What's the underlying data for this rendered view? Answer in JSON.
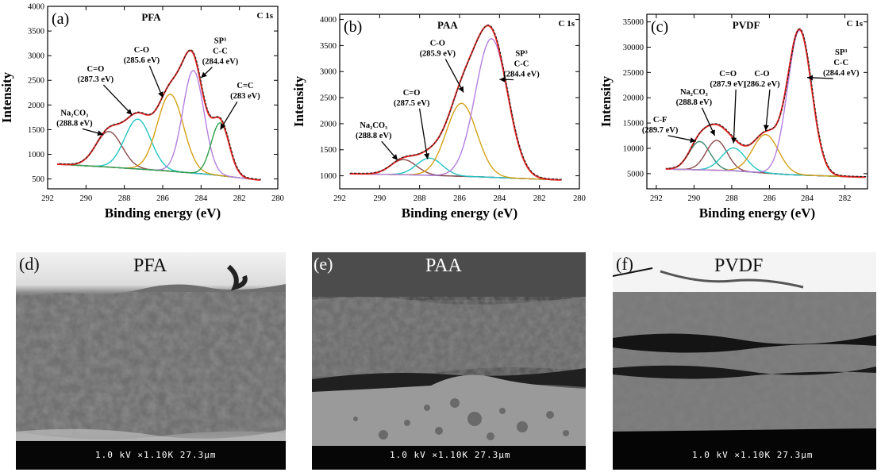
{
  "colors": {
    "envelope": "#e8231f",
    "raw": "#222222",
    "baseline": "#666677",
    "Na2CO3": "#8b4a4a",
    "C=O": "#22c4c4",
    "C-O": "#d4a017",
    "SP3": "#b57fe0",
    "C=C": "#2ea04a",
    "C-F": "#3a8a70"
  },
  "chart_data": [
    {
      "type": "line",
      "panel_label": "(a)",
      "title": "PFA",
      "corner_label": "C 1s",
      "xlabel": "Binding energy (eV)",
      "ylabel": "Intensity",
      "xlim": [
        292,
        280
      ],
      "ylim": [
        300,
        4000
      ],
      "xticks": [
        292,
        290,
        288,
        286,
        284,
        282,
        280
      ],
      "yticks": [
        500,
        1000,
        1500,
        2000,
        2500,
        3000,
        3500,
        4000
      ],
      "baseline": [
        [
          291.5,
          800
        ],
        [
          289,
          745
        ],
        [
          286,
          670
        ],
        [
          283.5,
          590
        ],
        [
          281,
          480
        ]
      ],
      "series": [
        {
          "name": "Na2CO3",
          "center": 288.8,
          "amplitude": 720,
          "fwhm": 1.6,
          "color_key": "Na2CO3"
        },
        {
          "name": "C=O",
          "center": 287.3,
          "amplitude": 1010,
          "fwhm": 1.6,
          "color_key": "C=O"
        },
        {
          "name": "C-O",
          "center": 285.6,
          "amplitude": 1560,
          "fwhm": 1.6,
          "color_key": "C-O"
        },
        {
          "name": "C-C",
          "center": 284.4,
          "amplitude": 2080,
          "fwhm": 1.3,
          "color_key": "SP3"
        },
        {
          "name": "C=C",
          "center": 283.0,
          "amplitude": 1070,
          "fwhm": 1.1,
          "color_key": "C=C"
        }
      ],
      "annotations": [
        {
          "lines": [
            "SP³",
            "C-C",
            "(284.4 eV)"
          ],
          "tx": 283.0,
          "ty": 3250,
          "ax": 284.0,
          "ay": 2550,
          "anchor": "middle"
        },
        {
          "lines": [
            "C-O",
            "(285.6 eV)"
          ],
          "tx": 287.1,
          "ty": 3070,
          "ax": 286.0,
          "ay": 2150,
          "anchor": "middle"
        },
        {
          "lines": [
            "C=O",
            "(287.3 eV)"
          ],
          "tx": 289.5,
          "ty": 2680,
          "ax": 287.6,
          "ay": 1800,
          "anchor": "middle"
        },
        {
          "lines": [
            "C=C",
            "(283 eV)"
          ],
          "tx": 281.7,
          "ty": 2340,
          "ax": 283.0,
          "ay": 1500,
          "anchor": "middle"
        },
        {
          "lines": [
            "Na₂CO₃",
            "(288.8 eV)"
          ],
          "tx": 290.6,
          "ty": 1790,
          "ax": 289.1,
          "ay": 1400,
          "anchor": "middle"
        }
      ]
    },
    {
      "type": "line",
      "panel_label": "(b)",
      "title": "PAA",
      "corner_label": "C 1s",
      "xlabel": "Binding energy (eV)",
      "ylabel": "Intensity",
      "xlim": [
        292,
        280
      ],
      "ylim": [
        750,
        4100
      ],
      "xticks": [
        292,
        290,
        288,
        286,
        284,
        282,
        280
      ],
      "yticks": [
        1000,
        1500,
        2000,
        2500,
        3000,
        3500,
        4000
      ],
      "baseline": [
        [
          291.5,
          1040
        ],
        [
          288,
          1015
        ],
        [
          285,
          980
        ],
        [
          281,
          920
        ]
      ],
      "series": [
        {
          "name": "Na2CO3",
          "center": 288.8,
          "amplitude": 290,
          "fwhm": 1.5,
          "color_key": "Na2CO3"
        },
        {
          "name": "C=O",
          "center": 287.5,
          "amplitude": 330,
          "fwhm": 1.5,
          "color_key": "C=O"
        },
        {
          "name": "C-O",
          "center": 285.9,
          "amplitude": 1400,
          "fwhm": 1.8,
          "color_key": "C-O"
        },
        {
          "name": "C-C",
          "center": 284.4,
          "amplitude": 2660,
          "fwhm": 1.9,
          "color_key": "SP3"
        }
      ],
      "annotations": [
        {
          "lines": [
            "SP³",
            "C-C",
            "(284.4 eV)"
          ],
          "tx": 282.9,
          "ty": 3300,
          "ax": 284.0,
          "ay": 2850,
          "anchor": "middle"
        },
        {
          "lines": [
            "C-O",
            "(285.9 eV)"
          ],
          "tx": 287.1,
          "ty": 3500,
          "ax": 285.8,
          "ay": 2600,
          "anchor": "middle"
        },
        {
          "lines": [
            "C=O",
            "(287.5 eV)"
          ],
          "tx": 288.4,
          "ty": 2550,
          "ax": 287.6,
          "ay": 1320,
          "anchor": "middle"
        },
        {
          "lines": [
            "Na₂CO₃",
            "(288.8 eV)"
          ],
          "tx": 290.3,
          "ty": 1920,
          "ax": 289.1,
          "ay": 1300,
          "anchor": "middle"
        }
      ]
    },
    {
      "type": "line",
      "panel_label": "(c)",
      "title": "PVDF",
      "corner_label": "C 1s",
      "xlabel": "Binding energy (eV)",
      "ylabel": "Intensity",
      "xlim": [
        292.5,
        280.8
      ],
      "ylim": [
        2000,
        36500
      ],
      "xticks": [
        292,
        290,
        288,
        286,
        284,
        282
      ],
      "yticks": [
        5000,
        10000,
        15000,
        20000,
        25000,
        30000,
        35000
      ],
      "baseline": [
        [
          291.5,
          5900
        ],
        [
          288,
          5600
        ],
        [
          285,
          4800
        ],
        [
          281,
          4300
        ]
      ],
      "series": [
        {
          "name": "C-F",
          "center": 289.7,
          "amplitude": 5600,
          "fwhm": 1.3,
          "color_key": "C-F"
        },
        {
          "name": "Na2CO3",
          "center": 288.8,
          "amplitude": 5900,
          "fwhm": 1.3,
          "color_key": "Na2CO3"
        },
        {
          "name": "C=O",
          "center": 287.9,
          "amplitude": 4500,
          "fwhm": 1.5,
          "color_key": "C=O"
        },
        {
          "name": "C-O",
          "center": 286.2,
          "amplitude": 7600,
          "fwhm": 1.6,
          "color_key": "C-O"
        },
        {
          "name": "C-C",
          "center": 284.4,
          "amplitude": 28600,
          "fwhm": 1.5,
          "color_key": "SP3"
        }
      ],
      "annotations": [
        {
          "lines": [
            "SP³",
            "C-C",
            "(284.4 eV)"
          ],
          "tx": 282.2,
          "ty": 28500,
          "ax": 284.0,
          "ay": 24000,
          "anchor": "middle"
        },
        {
          "lines": [
            "C-O",
            "(286.2 eV)"
          ],
          "tx": 286.4,
          "ty": 24300,
          "ax": 286.2,
          "ay": 13500,
          "anchor": "middle"
        },
        {
          "lines": [
            "C=O",
            "(287.9 eV)"
          ],
          "tx": 288.2,
          "ty": 24300,
          "ax": 287.9,
          "ay": 11000,
          "anchor": "middle"
        },
        {
          "lines": [
            "Na₂CO₃",
            "(288.8 eV)"
          ],
          "tx": 290.0,
          "ty": 20700,
          "ax": 288.9,
          "ay": 12500,
          "anchor": "middle"
        },
        {
          "lines": [
            "C-F",
            "(289.7 eV)"
          ],
          "tx": 291.8,
          "ty": 15200,
          "ax": 289.9,
          "ay": 11400,
          "anchor": "middle"
        }
      ]
    }
  ],
  "sem_images": [
    {
      "panel_label": "(d)",
      "title": "PFA",
      "scale_text": "1.0 kV ×1.10K 27.3µm",
      "variant": "pfa"
    },
    {
      "panel_label": "(e)",
      "title": "PAA",
      "scale_text": "1.0 kV ×1.10K 27.3µm",
      "variant": "paa"
    },
    {
      "panel_label": "(f)",
      "title": "PVDF",
      "scale_text": "1.0 kV ×1.10K 27.3µm",
      "variant": "pvdf"
    }
  ]
}
